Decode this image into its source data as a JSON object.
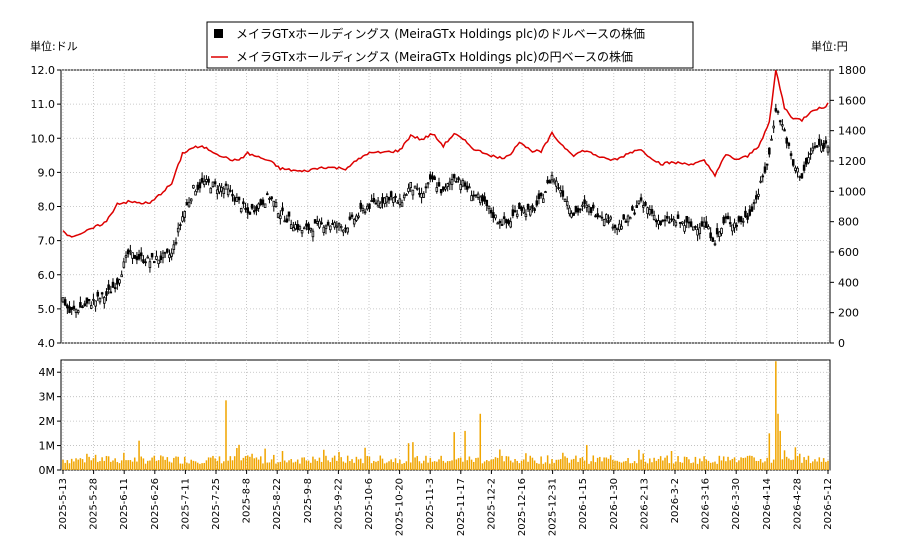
{
  "chart_data": {
    "type": "candlestick",
    "legend": {
      "position": "top-center",
      "entries": [
        {
          "label": "メイラGTxホールディングス (MeiraGTx Holdings plc)のドルベースの株価",
          "color": "#000000",
          "marker": "square"
        },
        {
          "label": "メイラGTxホールディングス (MeiraGTx Holdings plc)の円ベースの株価",
          "color": "#dd0000",
          "marker": "line"
        }
      ]
    },
    "left_unit": "単位:ドル",
    "right_unit": "単位:円",
    "price_axis": {
      "min": 4.0,
      "max": 12.0,
      "ticks": [
        "4.0",
        "5.0",
        "6.0",
        "7.0",
        "8.0",
        "9.0",
        "10.0",
        "11.0",
        "12.0"
      ]
    },
    "yen_axis": {
      "min": 0,
      "max": 1800,
      "ticks": [
        "0",
        "200",
        "400",
        "600",
        "800",
        "1000",
        "1200",
        "1400",
        "1600",
        "1800"
      ]
    },
    "volume_axis": {
      "min": 0,
      "max": 4500000,
      "ticks": [
        "0M",
        "1M",
        "2M",
        "3M",
        "4M"
      ]
    },
    "grid": true,
    "x_date_labels": [
      "2025-5-13",
      "2025-5-28",
      "2025-6-11",
      "2025-6-26",
      "2025-7-11",
      "2025-7-25",
      "2025-8-8",
      "2025-8-22",
      "2025-9-8",
      "2025-9-22",
      "2025-10-6",
      "2025-10-20",
      "2025-11-3",
      "2025-11-17",
      "2025-12-2",
      "2025-12-16",
      "2025-12-31",
      "2026-1-15",
      "2026-1-30",
      "2026-2-13",
      "2026-3-2",
      "2026-3-16",
      "2026-3-30",
      "2026-4-14",
      "2026-4-28",
      "2026-5-12"
    ],
    "series_keypoints": {
      "description": "Approximate closing prices (USD) and yen-based prices read from the chart, indexed by trading-day offset from 2025-5-13",
      "usd_close": [
        [
          0,
          5.3
        ],
        [
          3,
          4.9
        ],
        [
          10,
          5.1
        ],
        [
          20,
          5.4
        ],
        [
          25,
          5.8
        ],
        [
          30,
          6.6
        ],
        [
          40,
          6.4
        ],
        [
          50,
          6.6
        ],
        [
          55,
          7.7
        ],
        [
          60,
          8.5
        ],
        [
          65,
          8.7
        ],
        [
          75,
          8.5
        ],
        [
          80,
          8.2
        ],
        [
          85,
          7.8
        ],
        [
          95,
          8.3
        ],
        [
          100,
          7.8
        ],
        [
          110,
          7.3
        ],
        [
          120,
          7.5
        ],
        [
          130,
          7.4
        ],
        [
          140,
          8.0
        ],
        [
          150,
          8.3
        ],
        [
          155,
          8.1
        ],
        [
          160,
          8.6
        ],
        [
          165,
          8.3
        ],
        [
          170,
          8.8
        ],
        [
          175,
          8.4
        ],
        [
          180,
          8.9
        ],
        [
          185,
          8.6
        ],
        [
          190,
          8.3
        ],
        [
          195,
          8.0
        ],
        [
          200,
          7.6
        ],
        [
          205,
          7.5
        ],
        [
          210,
          8.0
        ],
        [
          215,
          7.8
        ],
        [
          220,
          8.2
        ],
        [
          225,
          8.9
        ],
        [
          230,
          8.4
        ],
        [
          235,
          7.8
        ],
        [
          240,
          8.0
        ],
        [
          250,
          7.7
        ],
        [
          255,
          7.4
        ],
        [
          260,
          7.6
        ],
        [
          265,
          8.1
        ],
        [
          270,
          7.9
        ],
        [
          275,
          7.5
        ],
        [
          280,
          7.6
        ],
        [
          290,
          7.4
        ],
        [
          295,
          7.5
        ],
        [
          300,
          7.0
        ],
        [
          305,
          7.6
        ],
        [
          310,
          7.5
        ],
        [
          315,
          7.7
        ],
        [
          320,
          8.4
        ],
        [
          325,
          9.5
        ],
        [
          328,
          10.9
        ],
        [
          332,
          10.2
        ],
        [
          336,
          9.2
        ],
        [
          340,
          8.9
        ],
        [
          345,
          9.7
        ],
        [
          350,
          9.8
        ],
        [
          352,
          9.8
        ]
      ],
      "jpy_close": [
        [
          0,
          750
        ],
        [
          3,
          700
        ],
        [
          10,
          730
        ],
        [
          20,
          800
        ],
        [
          25,
          920
        ],
        [
          30,
          930
        ],
        [
          40,
          920
        ],
        [
          50,
          1050
        ],
        [
          55,
          1250
        ],
        [
          60,
          1290
        ],
        [
          65,
          1290
        ],
        [
          75,
          1220
        ],
        [
          80,
          1200
        ],
        [
          85,
          1250
        ],
        [
          95,
          1200
        ],
        [
          100,
          1150
        ],
        [
          110,
          1130
        ],
        [
          120,
          1160
        ],
        [
          130,
          1150
        ],
        [
          140,
          1250
        ],
        [
          150,
          1260
        ],
        [
          155,
          1270
        ],
        [
          160,
          1370
        ],
        [
          165,
          1340
        ],
        [
          170,
          1380
        ],
        [
          175,
          1300
        ],
        [
          180,
          1380
        ],
        [
          185,
          1330
        ],
        [
          190,
          1270
        ],
        [
          195,
          1250
        ],
        [
          200,
          1220
        ],
        [
          205,
          1230
        ],
        [
          210,
          1330
        ],
        [
          215,
          1270
        ],
        [
          220,
          1260
        ],
        [
          225,
          1380
        ],
        [
          230,
          1300
        ],
        [
          235,
          1240
        ],
        [
          240,
          1270
        ],
        [
          250,
          1210
        ],
        [
          255,
          1210
        ],
        [
          260,
          1250
        ],
        [
          265,
          1280
        ],
        [
          270,
          1230
        ],
        [
          275,
          1180
        ],
        [
          280,
          1190
        ],
        [
          290,
          1180
        ],
        [
          295,
          1200
        ],
        [
          300,
          1110
        ],
        [
          305,
          1240
        ],
        [
          310,
          1210
        ],
        [
          315,
          1230
        ],
        [
          320,
          1300
        ],
        [
          325,
          1450
        ],
        [
          328,
          1800
        ],
        [
          332,
          1550
        ],
        [
          336,
          1480
        ],
        [
          340,
          1470
        ],
        [
          345,
          1540
        ],
        [
          350,
          1550
        ],
        [
          352,
          1580
        ]
      ]
    }
  }
}
